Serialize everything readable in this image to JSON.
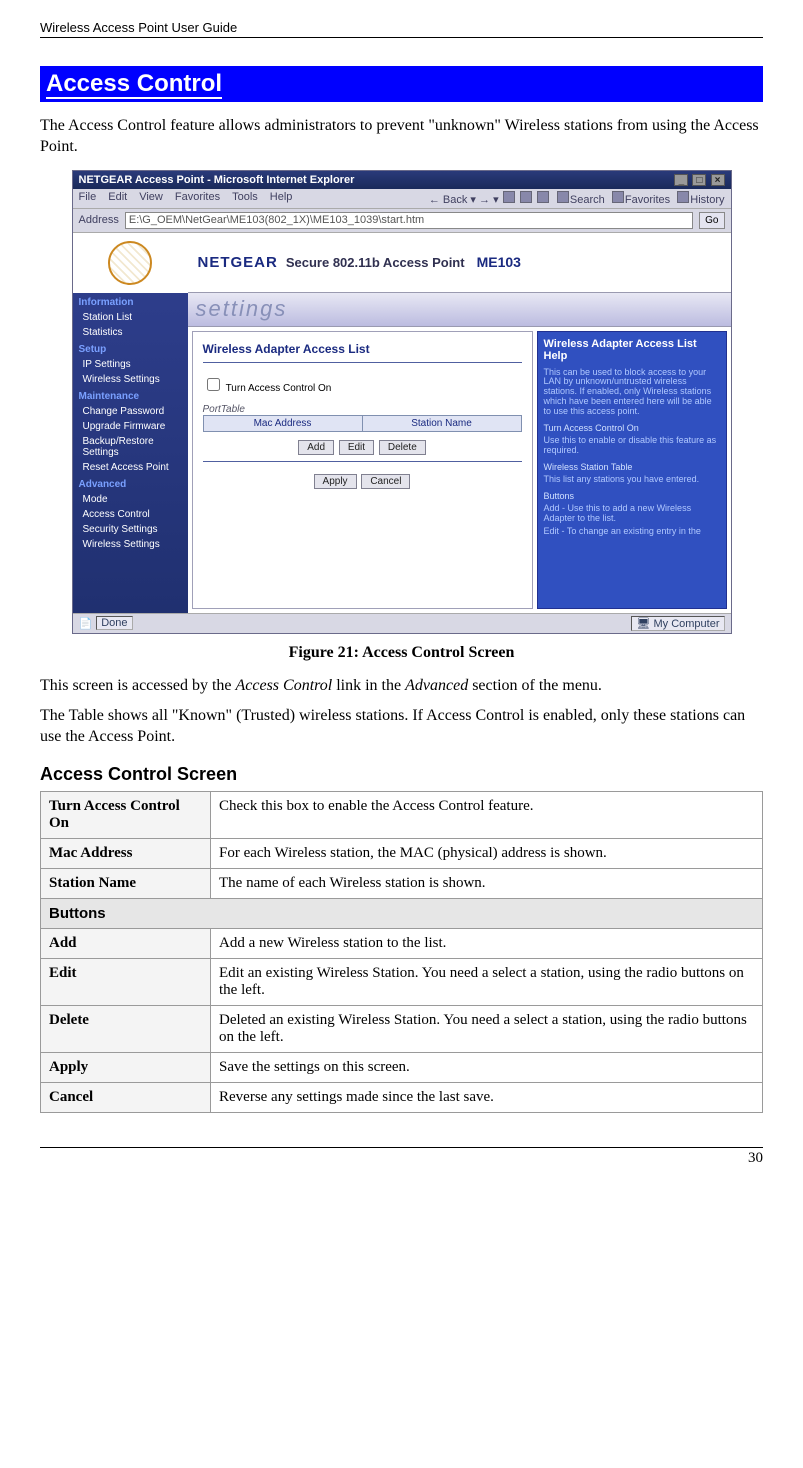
{
  "header": {
    "doc_title": "Wireless Access Point User Guide"
  },
  "title_bar": {
    "text": "Access Control"
  },
  "intro": {
    "p1": "The Access Control feature allows administrators to prevent \"unknown\" Wireless stations from using the Access Point."
  },
  "screenshot": {
    "window_title": "NETGEAR Access Point - Microsoft Internet Explorer",
    "menu": {
      "file": "File",
      "edit": "Edit",
      "view": "View",
      "fav": "Favorites",
      "tools": "Tools",
      "help": "Help",
      "back": "Back",
      "search": "Search",
      "favorites": "Favorites",
      "history": "History"
    },
    "address_label": "Address",
    "address_value": "E:\\G_OEM\\NetGear\\ME103(802_1X)\\ME103_1039\\start.htm",
    "go_label": "Go",
    "brand": "NETGEAR",
    "banner_text": "Secure 802.11b Access Point",
    "model": "ME103",
    "settings_word": "settings",
    "sidebar": {
      "information": "Information",
      "items_info": [
        "Station List",
        "Statistics"
      ],
      "setup": "Setup",
      "items_setup": [
        "IP Settings",
        "Wireless Settings"
      ],
      "maintenance": "Maintenance",
      "items_maint": [
        "Change Password",
        "Upgrade Firmware",
        "Backup/Restore Settings",
        "Reset Access Point"
      ],
      "advanced": "Advanced",
      "items_adv": [
        "Mode",
        "Access Control",
        "Security Settings",
        "Wireless Settings"
      ]
    },
    "center": {
      "heading": "Wireless Adapter Access List",
      "checkbox_label": "Turn Access Control On",
      "table_caption": "PortTable",
      "col1": "Mac Address",
      "col2": "Station Name",
      "btn_add": "Add",
      "btn_edit": "Edit",
      "btn_delete": "Delete",
      "btn_apply": "Apply",
      "btn_cancel": "Cancel"
    },
    "right": {
      "heading": "Wireless Adapter Access List Help",
      "p1": "This can be used to block access to your LAN by unknown/untrusted wireless stations. If enabled, only Wireless stations which have been entered here will be able to use this access point.",
      "sh1": "Turn Access Control On",
      "p2": "Use this to enable or disable this feature as required.",
      "sh2": "Wireless Station Table",
      "p3": "This list any stations you have entered.",
      "sh3": "Buttons",
      "p4": "Add - Use this to add a new Wireless Adapter to the list.",
      "p5": "Edit - To change an existing entry in the"
    },
    "status_left": "Done",
    "status_right": "My Computer"
  },
  "caption": "Figure 21: Access Control Screen",
  "after": {
    "p1_a": "This screen is accessed by the ",
    "p1_b": "Access Control",
    "p1_c": " link in the ",
    "p1_d": "Advanced",
    "p1_e": " section of the menu.",
    "p2": "The Table shows all \"Known\" (Trusted) wireless stations. If Access Control is enabled, only these stations can use the Access Point."
  },
  "table_heading": "Access Control Screen",
  "rows": {
    "r1h": "Turn Access Control On",
    "r1v": "Check this box to enable the Access Control feature.",
    "r2h": "Mac Address",
    "r2v": "For each Wireless station, the MAC (physical) address is shown.",
    "r3h": "Station Name",
    "r3v": "The name of each Wireless station is shown.",
    "sec": "Buttons",
    "r4h": "Add",
    "r4v": "Add a new Wireless station to the list.",
    "r5h": "Edit",
    "r5v": "Edit an existing Wireless Station. You need a select a station, using the radio buttons on the left.",
    "r6h": "Delete",
    "r6v": "Deleted an existing Wireless Station. You need a select a station, using the radio buttons on the left.",
    "r7h": "Apply",
    "r7v": "Save the settings on this screen.",
    "r8h": "Cancel",
    "r8v": "Reverse any settings made since the last save."
  },
  "page_number": "30"
}
